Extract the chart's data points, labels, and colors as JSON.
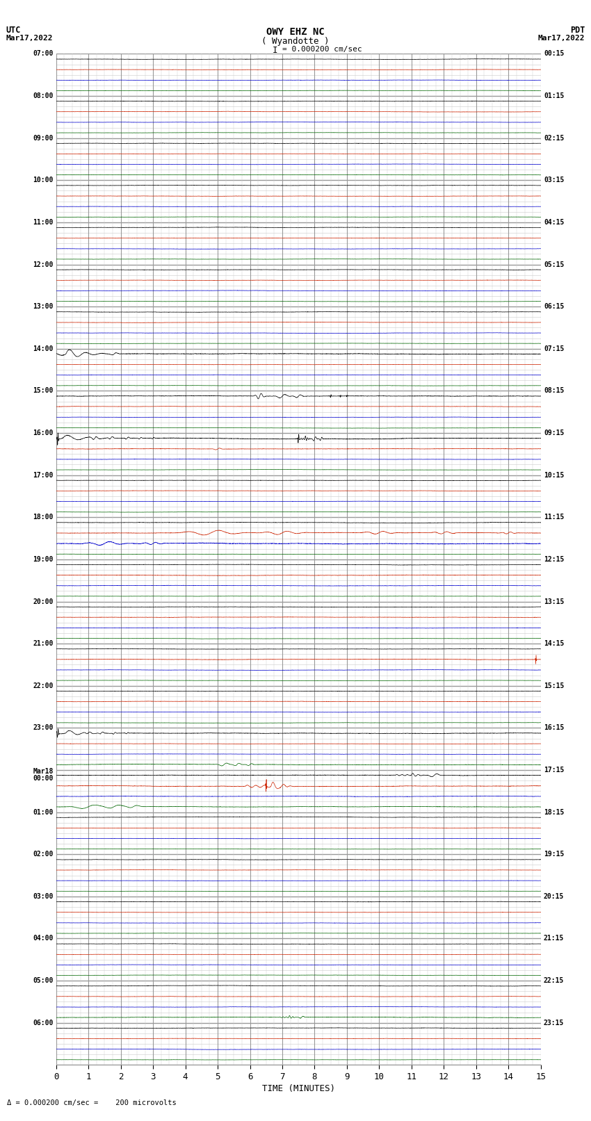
{
  "title_line1": "OWY EHZ NC",
  "title_line2": "( Wyandotte )",
  "title_scale": "I = 0.000200 cm/sec",
  "left_header_line1": "UTC",
  "left_header_line2": "Mar17,2022",
  "right_header_line1": "PDT",
  "right_header_line2": "Mar17,2022",
  "xlabel": "TIME (MINUTES)",
  "footer": "= 0.000200 cm/sec =    200 microvolts",
  "utc_labels": [
    "07:00",
    "08:00",
    "09:00",
    "10:00",
    "11:00",
    "12:00",
    "13:00",
    "14:00",
    "15:00",
    "16:00",
    "17:00",
    "18:00",
    "19:00",
    "20:00",
    "21:00",
    "22:00",
    "23:00",
    "Mar18\n00:00",
    "01:00",
    "02:00",
    "03:00",
    "04:00",
    "05:00",
    "06:00"
  ],
  "pdt_labels": [
    "00:15",
    "01:15",
    "02:15",
    "03:15",
    "04:15",
    "05:15",
    "06:15",
    "07:15",
    "08:15",
    "09:15",
    "10:15",
    "11:15",
    "12:15",
    "13:15",
    "14:15",
    "15:15",
    "16:15",
    "17:15",
    "18:15",
    "19:15",
    "20:15",
    "21:15",
    "22:15",
    "23:15"
  ],
  "num_hours": 24,
  "sub_rows": 4,
  "xmin": 0,
  "xmax": 15,
  "bg_color": "#ffffff",
  "grid_major_color": "#999999",
  "grid_minor_color": "#cccccc",
  "sub_colors": [
    "#000000",
    "#cc2200",
    "#0000cc",
    "#006600"
  ]
}
